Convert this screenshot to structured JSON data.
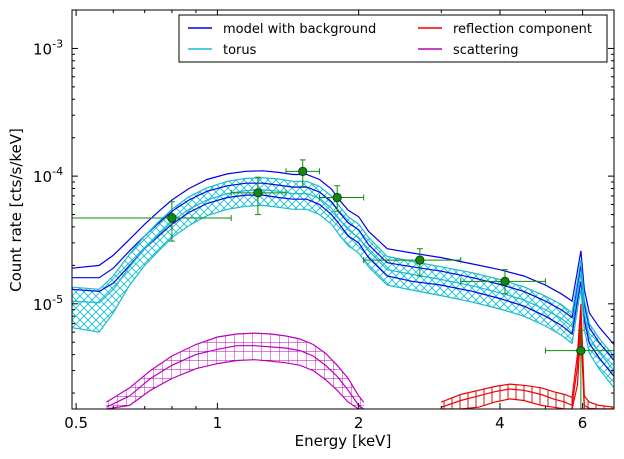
{
  "chart_data": {
    "type": "line",
    "xscale": "log",
    "yscale": "log",
    "xlim": [
      0.49,
      7.0
    ],
    "ylim": [
      1.5e-06,
      0.002
    ],
    "xlabel": "Energy [keV]",
    "ylabel": "Count rate [cts/s/keV]",
    "x_tick_labels": [
      {
        "v": 0.5,
        "label": "0.5"
      },
      {
        "v": 1,
        "label": "1"
      },
      {
        "v": 2,
        "label": "2"
      },
      {
        "v": 4,
        "label": "4"
      },
      {
        "v": 6,
        "label": "6"
      }
    ],
    "y_tick_labels": [
      {
        "v": 1e-05,
        "base": "10",
        "exp": "-5"
      },
      {
        "v": 0.0001,
        "base": "10",
        "exp": "-4"
      },
      {
        "v": 0.001,
        "base": "10",
        "exp": "-3"
      }
    ],
    "legend": {
      "placement": "top-right",
      "columns": 2,
      "entries": [
        {
          "label": "model with background",
          "color": "#0000ee"
        },
        {
          "label": "reflection component",
          "color": "#ee0000"
        },
        {
          "label": "torus",
          "color": "#17becf"
        },
        {
          "label": "scattering",
          "color": "#bb00bb"
        }
      ]
    },
    "data_points": {
      "color": "#118811",
      "points": [
        {
          "x": 0.8,
          "y": 4.7e-05,
          "xlo": 0.49,
          "xhi": 1.07,
          "ylo": 3.1e-05,
          "yhi": 6.3e-05
        },
        {
          "x": 1.22,
          "y": 7.4e-05,
          "xlo": 1.07,
          "xhi": 1.4,
          "ylo": 5e-05,
          "yhi": 9.8e-05
        },
        {
          "x": 1.52,
          "y": 0.000109,
          "xlo": 1.4,
          "xhi": 1.65,
          "ylo": 8.3e-05,
          "yhi": 0.000134
        },
        {
          "x": 1.8,
          "y": 6.8e-05,
          "xlo": 1.65,
          "xhi": 2.05,
          "ylo": 5.3e-05,
          "yhi": 8.4e-05
        },
        {
          "x": 2.7,
          "y": 2.2e-05,
          "xlo": 2.05,
          "xhi": 3.3,
          "ylo": 1.65e-05,
          "yhi": 2.7e-05
        },
        {
          "x": 4.1,
          "y": 1.5e-05,
          "xlo": 3.3,
          "xhi": 5.0,
          "ylo": 1.2e-05,
          "yhi": 1.85e-05
        },
        {
          "x": 5.95,
          "y": 4.3e-06,
          "xlo": 5.0,
          "xhi": 7.0,
          "ylo": 1.5e-06,
          "yhi": 6.2e-06
        }
      ]
    },
    "series": [
      {
        "name": "model with background",
        "color": "#0000ee",
        "x": [
          0.49,
          0.56,
          0.6,
          0.65,
          0.7,
          0.75,
          0.8,
          0.87,
          0.95,
          1.05,
          1.15,
          1.25,
          1.35,
          1.45,
          1.55,
          1.65,
          1.75,
          1.82,
          1.9,
          2.0,
          2.1,
          2.3,
          2.6,
          3.0,
          3.5,
          4.0,
          4.5,
          5.0,
          5.4,
          5.7,
          5.85,
          5.95,
          6.05,
          6.2,
          6.5,
          7.0
        ],
        "center": [
          1.6e-05,
          1.6e-05,
          1.9e-05,
          2.6e-05,
          3.4e-05,
          4.3e-05,
          5.3e-05,
          6.5e-05,
          7.6e-05,
          8.4e-05,
          8.8e-05,
          8.8e-05,
          8.5e-05,
          8.2e-05,
          8.2e-05,
          7.5e-05,
          6.3e-05,
          5.2e-05,
          4.3e-05,
          3.8e-05,
          2.9e-05,
          2.1e-05,
          1.95e-05,
          1.8e-05,
          1.6e-05,
          1.42e-05,
          1.25e-05,
          1.05e-05,
          9e-06,
          7.8e-06,
          1.4e-05,
          2e-05,
          1e-05,
          6.5e-06,
          5e-06,
          3.6e-06
        ],
        "upper": [
          1.9e-05,
          2e-05,
          2.4e-05,
          3.2e-05,
          4.2e-05,
          5.3e-05,
          6.5e-05,
          8e-05,
          9.4e-05,
          0.000104,
          0.000109,
          0.00011,
          0.000107,
          0.000103,
          0.000103,
          9.4e-05,
          7.9e-05,
          6.5e-05,
          5.4e-05,
          4.8e-05,
          3.7e-05,
          2.7e-05,
          2.5e-05,
          2.3e-05,
          2.05e-05,
          1.85e-05,
          1.65e-05,
          1.4e-05,
          1.2e-05,
          1.05e-05,
          1.8e-05,
          2.6e-05,
          1.3e-05,
          8.5e-06,
          6.6e-06,
          4.8e-06
        ],
        "lower": [
          1.3e-05,
          1.25e-05,
          1.45e-05,
          2e-05,
          2.7e-05,
          3.4e-05,
          4.2e-05,
          5.2e-05,
          6.1e-05,
          6.8e-05,
          7.1e-05,
          7.1e-05,
          6.8e-05,
          6.6e-05,
          6.6e-05,
          6e-05,
          5e-05,
          4.2e-05,
          3.4e-05,
          3e-05,
          2.3e-05,
          1.65e-05,
          1.5e-05,
          1.4e-05,
          1.25e-05,
          1.1e-05,
          9.6e-06,
          8e-06,
          6.8e-06,
          5.8e-06,
          1.05e-05,
          1.5e-05,
          7.5e-06,
          4.9e-06,
          3.8e-06,
          2.7e-06
        ]
      },
      {
        "name": "torus",
        "color": "#17becf",
        "x": [
          0.49,
          0.56,
          0.6,
          0.65,
          0.7,
          0.75,
          0.8,
          0.87,
          0.95,
          1.05,
          1.15,
          1.25,
          1.35,
          1.45,
          1.55,
          1.65,
          1.75,
          1.82,
          1.9,
          2.0,
          2.1,
          2.3,
          2.6,
          3.0,
          3.5,
          4.0,
          4.5,
          5.0,
          5.4,
          5.7,
          5.85,
          5.95,
          6.05,
          6.2,
          6.5,
          7.0
        ],
        "center": [
          1.05e-05,
          1.02e-05,
          1.3e-05,
          1.95e-05,
          2.7e-05,
          3.5e-05,
          4.4e-05,
          5.5e-05,
          6.5e-05,
          7.3e-05,
          7.7e-05,
          7.8e-05,
          7.6e-05,
          7.3e-05,
          7.3e-05,
          6.7e-05,
          5.6e-05,
          4.6e-05,
          3.8e-05,
          3.3e-05,
          2.6e-05,
          1.85e-05,
          1.7e-05,
          1.55e-05,
          1.38e-05,
          1.22e-05,
          1.07e-05,
          9e-06,
          7.7e-06,
          6.6e-06,
          1.2e-05,
          1.75e-05,
          8.5e-06,
          5.5e-06,
          4.2e-06,
          3e-06
        ],
        "upper": [
          1.35e-05,
          1.3e-05,
          1.65e-05,
          2.45e-05,
          3.4e-05,
          4.4e-05,
          5.5e-05,
          6.9e-05,
          8.1e-05,
          9.1e-05,
          9.6e-05,
          9.7e-05,
          9.5e-05,
          9.1e-05,
          9.1e-05,
          8.3e-05,
          7e-05,
          5.8e-05,
          4.8e-05,
          4.2e-05,
          3.3e-05,
          2.35e-05,
          2.15e-05,
          1.95e-05,
          1.75e-05,
          1.55e-05,
          1.36e-05,
          1.15e-05,
          9.9e-06,
          8.5e-06,
          1.5e-05,
          2.2e-05,
          1.08e-05,
          7e-06,
          5.4e-06,
          3.9e-06
        ],
        "lower": [
          6.5e-06,
          6e-06,
          8.5e-06,
          1.4e-05,
          2e-05,
          2.6e-05,
          3.3e-05,
          4.1e-05,
          4.9e-05,
          5.5e-05,
          5.8e-05,
          5.9e-05,
          5.7e-05,
          5.5e-05,
          5.5e-05,
          5e-05,
          4.2e-05,
          3.45e-05,
          2.85e-05,
          2.5e-05,
          1.95e-05,
          1.4e-05,
          1.28e-05,
          1.16e-05,
          1.03e-05,
          9.1e-06,
          8e-06,
          6.7e-06,
          5.7e-06,
          4.9e-06,
          9e-06,
          1.3e-05,
          6.3e-06,
          4.1e-06,
          3.1e-06,
          2.2e-06
        ]
      },
      {
        "name": "reflection component",
        "color": "#ee0000",
        "x": [
          3.0,
          3.3,
          3.6,
          3.9,
          4.2,
          4.5,
          4.9,
          5.2,
          5.5,
          5.7,
          5.85,
          5.95,
          6.05,
          6.2,
          6.5,
          7.0
        ],
        "center": [
          1.55e-06,
          1.75e-06,
          1.9e-06,
          2.05e-06,
          2.15e-06,
          2.1e-06,
          1.95e-06,
          1.8e-06,
          1.7e-06,
          1.6e-06,
          3.2e-06,
          8.5e-06,
          1.6e-06,
          1.52e-06,
          1.5e-06,
          1.5e-06
        ],
        "upper": [
          1.7e-06,
          1.95e-06,
          2.1e-06,
          2.25e-06,
          2.35e-06,
          2.3e-06,
          2.2e-06,
          2.05e-06,
          1.95e-06,
          1.85e-06,
          4e-06,
          1e-05,
          1.9e-06,
          1.7e-06,
          1.6e-06,
          1.55e-06
        ],
        "lower": [
          1.5e-06,
          1.5e-06,
          1.55e-06,
          1.7e-06,
          1.8e-06,
          1.75e-06,
          1.6e-06,
          1.55e-06,
          1.5e-06,
          1.5e-06,
          2.3e-06,
          6.5e-06,
          1.5e-06,
          1.5e-06,
          1.5e-06,
          1.5e-06
        ]
      },
      {
        "name": "scattering",
        "color": "#bb00bb",
        "x": [
          0.58,
          0.65,
          0.72,
          0.8,
          0.9,
          1.0,
          1.1,
          1.2,
          1.3,
          1.4,
          1.5,
          1.6,
          1.7,
          1.8,
          1.9,
          2.0,
          2.05
        ],
        "center": [
          1.55e-06,
          1.9e-06,
          2.6e-06,
          3.3e-06,
          4e-06,
          4.4e-06,
          4.7e-06,
          4.7e-06,
          4.6e-06,
          4.5e-06,
          4.3e-06,
          3.9e-06,
          3.3e-06,
          2.7e-06,
          2.1e-06,
          1.6e-06,
          1.5e-06
        ],
        "upper": [
          1.7e-06,
          2.2e-06,
          3e-06,
          3.9e-06,
          4.8e-06,
          5.5e-06,
          5.8e-06,
          5.9e-06,
          5.8e-06,
          5.6e-06,
          5.3e-06,
          4.8e-06,
          4.1e-06,
          3.3e-06,
          2.6e-06,
          1.9e-06,
          1.7e-06
        ],
        "lower": [
          1.5e-06,
          1.6e-06,
          2.1e-06,
          2.6e-06,
          3.1e-06,
          3.4e-06,
          3.6e-06,
          3.65e-06,
          3.55e-06,
          3.45e-06,
          3.3e-06,
          3e-06,
          2.55e-06,
          2.1e-06,
          1.7e-06,
          1.5e-06,
          1.5e-06
        ]
      }
    ]
  }
}
